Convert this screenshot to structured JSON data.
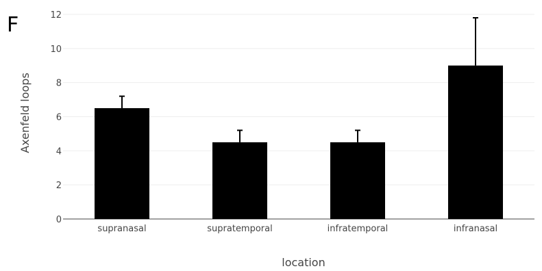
{
  "panel_label": "F",
  "chart_data": {
    "type": "bar",
    "categories": [
      "supranasal",
      "supratemporal",
      "infratemporal",
      "infranasal"
    ],
    "values": [
      6.5,
      4.5,
      4.5,
      9.0
    ],
    "error_upper": [
      0.7,
      0.7,
      0.7,
      2.8
    ],
    "title": "",
    "xlabel": "location",
    "ylabel": "Axenfeld loops",
    "ylim": [
      0,
      12
    ],
    "yticks": [
      0,
      2,
      4,
      6,
      8,
      10,
      12
    ],
    "grid": true,
    "legend": "none",
    "colors": {
      "bar": "#000000",
      "error_bar": "#000000",
      "grid": "#eeeeee",
      "zero_line": "#444444",
      "text": "#444444"
    }
  }
}
